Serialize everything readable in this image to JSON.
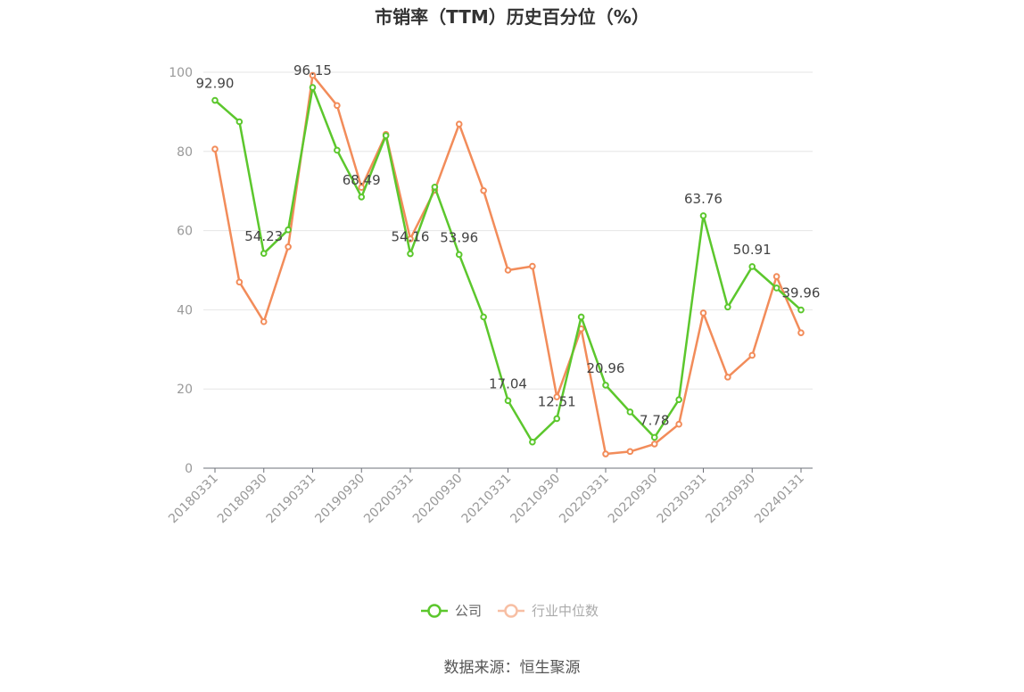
{
  "chart_data": {
    "type": "line",
    "title": "市销率（TTM）历史百分位（%）",
    "ylim": [
      0,
      100
    ],
    "yticks": [
      0,
      20,
      40,
      60,
      80,
      100
    ],
    "x_tick_labels": [
      "20180331",
      "20180930",
      "20190331",
      "20190930",
      "20200331",
      "20200930",
      "20210331",
      "20210930",
      "20220331",
      "20220930",
      "20230331",
      "20230930",
      "20240131"
    ],
    "series": [
      {
        "name": "公司",
        "color": "#5cc72d",
        "values": [
          92.9,
          87.5,
          54.23,
          60.2,
          96.15,
          80.3,
          68.49,
          84.0,
          54.16,
          71.0,
          53.96,
          38.2,
          17.04,
          6.6,
          12.51,
          38.2,
          20.96,
          14.2,
          7.78,
          17.3,
          63.76,
          40.7,
          50.91,
          45.5,
          39.96
        ]
      },
      {
        "name": "行业中位数",
        "color": "#f28c5a",
        "values": [
          80.6,
          47.0,
          37.0,
          55.9,
          99.2,
          91.6,
          70.9,
          84.3,
          57.9,
          70.2,
          86.9,
          70.1,
          50.0,
          51.0,
          18.0,
          35.2,
          3.6,
          4.2,
          6.1,
          11.1,
          39.2,
          23.0,
          28.5,
          48.4,
          34.2
        ]
      }
    ],
    "annotations": [
      {
        "index": 0,
        "text": "92.90"
      },
      {
        "index": 2,
        "text": "54.23"
      },
      {
        "index": 4,
        "text": "96.15"
      },
      {
        "index": 6,
        "text": "68.49"
      },
      {
        "index": 8,
        "text": "54.16"
      },
      {
        "index": 10,
        "text": "53.96"
      },
      {
        "index": 12,
        "text": "17.04"
      },
      {
        "index": 14,
        "text": "12.51"
      },
      {
        "index": 16,
        "text": "20.96"
      },
      {
        "index": 18,
        "text": "7.78"
      },
      {
        "index": 20,
        "text": "63.76"
      },
      {
        "index": 22,
        "text": "50.91"
      },
      {
        "index": 24,
        "text": "39.96"
      }
    ],
    "grid": true,
    "legend_position": "bottom-center"
  },
  "source": "数据来源：恒生聚源"
}
